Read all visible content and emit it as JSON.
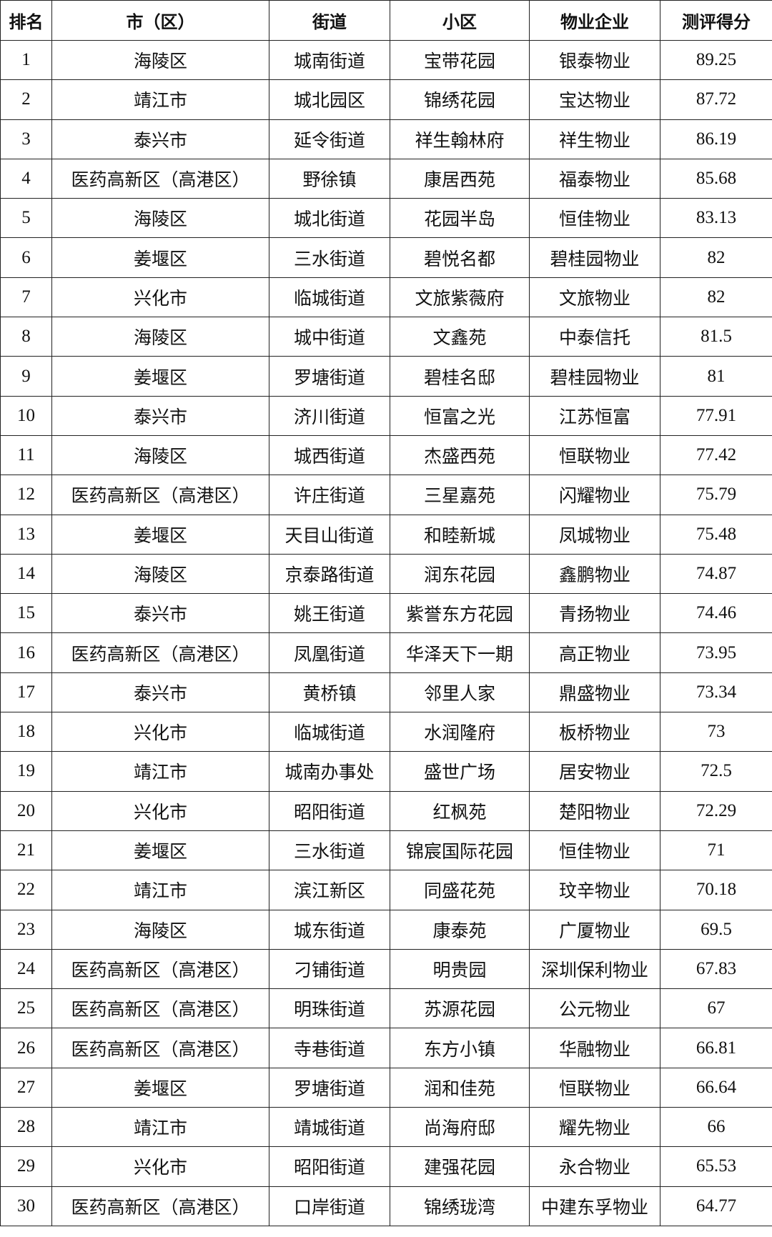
{
  "table": {
    "headers": [
      "排名",
      "市（区）",
      "街道",
      "小区",
      "物业企业",
      "测评得分"
    ],
    "rows": [
      [
        "1",
        "海陵区",
        "城南街道",
        "宝带花园",
        "银泰物业",
        "89.25"
      ],
      [
        "2",
        "靖江市",
        "城北园区",
        "锦绣花园",
        "宝达物业",
        "87.72"
      ],
      [
        "3",
        "泰兴市",
        "延令街道",
        "祥生翰林府",
        "祥生物业",
        "86.19"
      ],
      [
        "4",
        "医药高新区（高港区）",
        "野徐镇",
        "康居西苑",
        "福泰物业",
        "85.68"
      ],
      [
        "5",
        "海陵区",
        "城北街道",
        "花园半岛",
        "恒佳物业",
        "83.13"
      ],
      [
        "6",
        "姜堰区",
        "三水街道",
        "碧悦名都",
        "碧桂园物业",
        "82"
      ],
      [
        "7",
        "兴化市",
        "临城街道",
        "文旅紫薇府",
        "文旅物业",
        "82"
      ],
      [
        "8",
        "海陵区",
        "城中街道",
        "文鑫苑",
        "中泰信托",
        "81.5"
      ],
      [
        "9",
        "姜堰区",
        "罗塘街道",
        "碧桂名邸",
        "碧桂园物业",
        "81"
      ],
      [
        "10",
        "泰兴市",
        "济川街道",
        "恒富之光",
        "江苏恒富",
        "77.91"
      ],
      [
        "11",
        "海陵区",
        "城西街道",
        "杰盛西苑",
        "恒联物业",
        "77.42"
      ],
      [
        "12",
        "医药高新区（高港区）",
        "许庄街道",
        "三星嘉苑",
        "闪耀物业",
        "75.79"
      ],
      [
        "13",
        "姜堰区",
        "天目山街道",
        "和睦新城",
        "凤城物业",
        "75.48"
      ],
      [
        "14",
        "海陵区",
        "京泰路街道",
        "润东花园",
        "鑫鹏物业",
        "74.87"
      ],
      [
        "15",
        "泰兴市",
        "姚王街道",
        "紫誉东方花园",
        "青扬物业",
        "74.46"
      ],
      [
        "16",
        "医药高新区（高港区）",
        "凤凰街道",
        "华泽天下一期",
        "高正物业",
        "73.95"
      ],
      [
        "17",
        "泰兴市",
        "黄桥镇",
        "邻里人家",
        "鼎盛物业",
        "73.34"
      ],
      [
        "18",
        "兴化市",
        "临城街道",
        "水润隆府",
        "板桥物业",
        "73"
      ],
      [
        "19",
        "靖江市",
        "城南办事处",
        "盛世广场",
        "居安物业",
        "72.5"
      ],
      [
        "20",
        "兴化市",
        "昭阳街道",
        "红枫苑",
        "楚阳物业",
        "72.29"
      ],
      [
        "21",
        "姜堰区",
        "三水街道",
        "锦宸国际花园",
        "恒佳物业",
        "71"
      ],
      [
        "22",
        "靖江市",
        "滨江新区",
        "同盛花苑",
        "玟辛物业",
        "70.18"
      ],
      [
        "23",
        "海陵区",
        "城东街道",
        "康泰苑",
        "广厦物业",
        "69.5"
      ],
      [
        "24",
        "医药高新区（高港区）",
        "刁铺街道",
        "明贵园",
        "深圳保利物业",
        "67.83"
      ],
      [
        "25",
        "医药高新区（高港区）",
        "明珠街道",
        "苏源花园",
        "公元物业",
        "67"
      ],
      [
        "26",
        "医药高新区（高港区）",
        "寺巷街道",
        "东方小镇",
        "华融物业",
        "66.81"
      ],
      [
        "27",
        "姜堰区",
        "罗塘街道",
        "润和佳苑",
        "恒联物业",
        "66.64"
      ],
      [
        "28",
        "靖江市",
        "靖城街道",
        "尚海府邸",
        "耀先物业",
        "66"
      ],
      [
        "29",
        "兴化市",
        "昭阳街道",
        "建强花园",
        "永合物业",
        "65.53"
      ],
      [
        "30",
        "医药高新区（高港区）",
        "口岸街道",
        "锦绣珑湾",
        "中建东孚物业",
        "64.77"
      ]
    ]
  }
}
